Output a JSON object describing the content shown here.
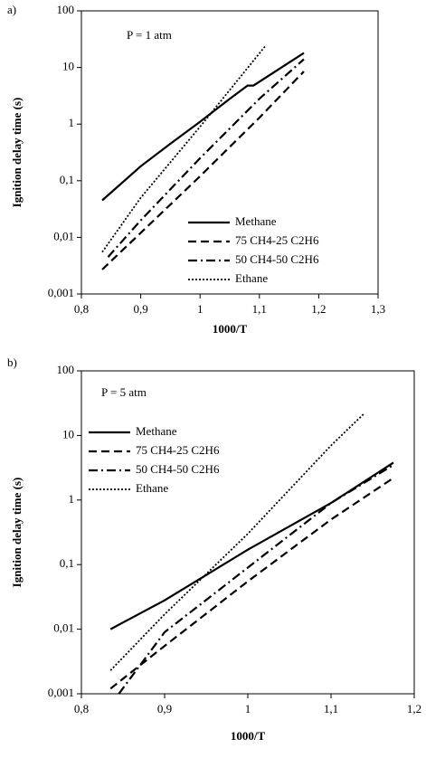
{
  "chart_data": [
    {
      "type": "line",
      "panel_label": "a)",
      "annotation": "P = 1 atm",
      "x_label": "1000/T",
      "y_label": "Ignition delay time (s)",
      "log_y": true,
      "legend": "lower right",
      "xlim": [
        0.8,
        1.3
      ],
      "xticks": [
        {
          "value": 0.8,
          "label": "0,8"
        },
        {
          "value": 0.9,
          "label": "0,9"
        },
        1,
        {
          "value": 1.1,
          "label": "1,1"
        },
        {
          "value": 1.2,
          "label": "1,2"
        },
        {
          "value": 1.3,
          "label": "1,3"
        }
      ],
      "ylim": [
        0.001,
        100
      ],
      "yticks": [
        {
          "value": 0.001,
          "label": "0,001"
        },
        {
          "value": 0.01,
          "label": "0,01"
        },
        {
          "value": 0.1,
          "label": "0,1"
        },
        1,
        10,
        100
      ],
      "series": [
        {
          "name": "Methane",
          "color": "#000000",
          "dash": "solid",
          "x": [
            0.835,
            0.9,
            0.95,
            1.0,
            1.05,
            1.08,
            1.09,
            1.175
          ],
          "values": [
            0.045,
            0.18,
            0.45,
            1.1,
            2.8,
            4.8,
            4.8,
            18
          ]
        },
        {
          "name": "75 CH4-25 C2H6",
          "color": "#000000",
          "dash": "dash",
          "x": [
            0.835,
            0.9,
            1.0,
            1.1,
            1.175
          ],
          "values": [
            0.0027,
            0.012,
            0.12,
            1.3,
            8.5
          ]
        },
        {
          "name": "50 CH4-50 C2H6",
          "color": "#000000",
          "dash": "dashdot",
          "x": [
            0.845,
            0.9,
            1.0,
            1.1,
            1.175
          ],
          "values": [
            0.0045,
            0.02,
            0.25,
            2.8,
            14
          ]
        },
        {
          "name": "Ethane",
          "color": "#000000",
          "dash": "dot",
          "x": [
            0.835,
            0.9,
            1.0,
            1.11
          ],
          "values": [
            0.0055,
            0.05,
            0.9,
            24
          ]
        }
      ]
    },
    {
      "type": "line",
      "panel_label": "b)",
      "annotation": "P = 5 atm",
      "x_label": "1000/T",
      "y_label": "Ignition delay time (s)",
      "log_y": true,
      "legend": "upper left",
      "xlim": [
        0.8,
        1.2
      ],
      "xticks": [
        {
          "value": 0.8,
          "label": "0,8"
        },
        {
          "value": 0.9,
          "label": "0,9"
        },
        1,
        {
          "value": 1.1,
          "label": "1,1"
        },
        {
          "value": 1.2,
          "label": "1,2"
        }
      ],
      "ylim": [
        0.001,
        100
      ],
      "yticks": [
        {
          "value": 0.001,
          "label": "0,001"
        },
        {
          "value": 0.01,
          "label": "0,01"
        },
        {
          "value": 0.1,
          "label": "0,1"
        },
        1,
        10,
        100
      ],
      "series": [
        {
          "name": "Methane",
          "color": "#000000",
          "dash": "solid",
          "x": [
            0.835,
            0.9,
            1.0,
            1.1,
            1.175
          ],
          "values": [
            0.01,
            0.028,
            0.17,
            0.9,
            3.8
          ]
        },
        {
          "name": "75 CH4-25 C2H6",
          "color": "#000000",
          "dash": "dash",
          "x": [
            0.835,
            0.9,
            1.0,
            1.1,
            1.175
          ],
          "values": [
            0.0012,
            0.0055,
            0.055,
            0.5,
            2.2
          ]
        },
        {
          "name": "50 CH4-50 C2H6",
          "color": "#000000",
          "dash": "dashdot",
          "x": [
            0.845,
            0.9,
            1.0,
            1.1,
            1.175
          ],
          "values": [
            0.001,
            0.009,
            0.09,
            0.9,
            3.5
          ]
        },
        {
          "name": "Ethane",
          "color": "#000000",
          "dash": "dot",
          "x": [
            0.835,
            0.9,
            1.0,
            1.1,
            1.14
          ],
          "values": [
            0.0023,
            0.017,
            0.3,
            7,
            22
          ]
        }
      ]
    }
  ]
}
